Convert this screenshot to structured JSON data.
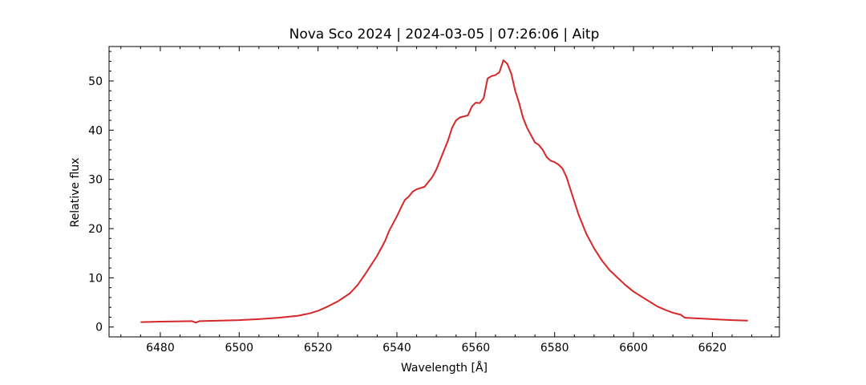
{
  "chart_data": {
    "type": "line",
    "title": "Nova Sco 2024 | 2024-03-05 | 07:26:06 | Aitp",
    "xlabel": "Wavelength [Å]",
    "ylabel": "Relative flux",
    "xlim": [
      6467,
      6637
    ],
    "ylim": [
      -2,
      57
    ],
    "x_ticks": [
      6480,
      6500,
      6520,
      6540,
      6560,
      6580,
      6600,
      6620
    ],
    "y_ticks": [
      0,
      10,
      20,
      30,
      40,
      50
    ],
    "grid": false,
    "series": [
      {
        "color": "#d62728",
        "x": [
          6475,
          6480,
          6485,
          6488,
          6489,
          6490,
          6495,
          6500,
          6505,
          6510,
          6515,
          6518,
          6520,
          6522,
          6525,
          6528,
          6530,
          6532,
          6535,
          6537,
          6538,
          6540,
          6541,
          6542,
          6543,
          6544,
          6545,
          6547,
          6548,
          6549,
          6550,
          6551,
          6552,
          6553,
          6554,
          6555,
          6556,
          6557,
          6558,
          6559,
          6560,
          6561,
          6562,
          6563,
          6564,
          6565,
          6566,
          6567,
          6568,
          6569,
          6570,
          6571,
          6572,
          6573,
          6574,
          6575,
          6576,
          6577,
          6578,
          6579,
          6580,
          6581,
          6582,
          6583,
          6584,
          6585,
          6586,
          6587,
          6588,
          6590,
          6592,
          6594,
          6596,
          6598,
          6600,
          6602,
          6604,
          6606,
          6608,
          6610,
          6612,
          6613,
          6615,
          6620,
          6625,
          6629
        ],
        "y": [
          1.0,
          1.1,
          1.15,
          1.2,
          0.9,
          1.2,
          1.3,
          1.4,
          1.6,
          1.9,
          2.3,
          2.8,
          3.3,
          4.0,
          5.2,
          6.8,
          8.5,
          10.8,
          14.5,
          17.5,
          19.5,
          22.5,
          24.2,
          25.8,
          26.5,
          27.5,
          28.0,
          28.5,
          29.5,
          30.5,
          32.0,
          34.0,
          36.0,
          38.0,
          40.5,
          42.0,
          42.6,
          42.8,
          43.0,
          44.8,
          45.6,
          45.5,
          46.5,
          50.5,
          51.0,
          51.2,
          51.8,
          54.2,
          53.5,
          51.5,
          48.0,
          45.5,
          42.5,
          40.5,
          39.0,
          37.5,
          37.0,
          36.0,
          34.5,
          33.8,
          33.5,
          33.0,
          32.2,
          30.5,
          28.0,
          25.5,
          23.0,
          21.0,
          19.0,
          16.0,
          13.5,
          11.5,
          10.0,
          8.5,
          7.2,
          6.2,
          5.2,
          4.2,
          3.5,
          2.9,
          2.5,
          1.9,
          1.8,
          1.6,
          1.4,
          1.3
        ]
      }
    ]
  }
}
